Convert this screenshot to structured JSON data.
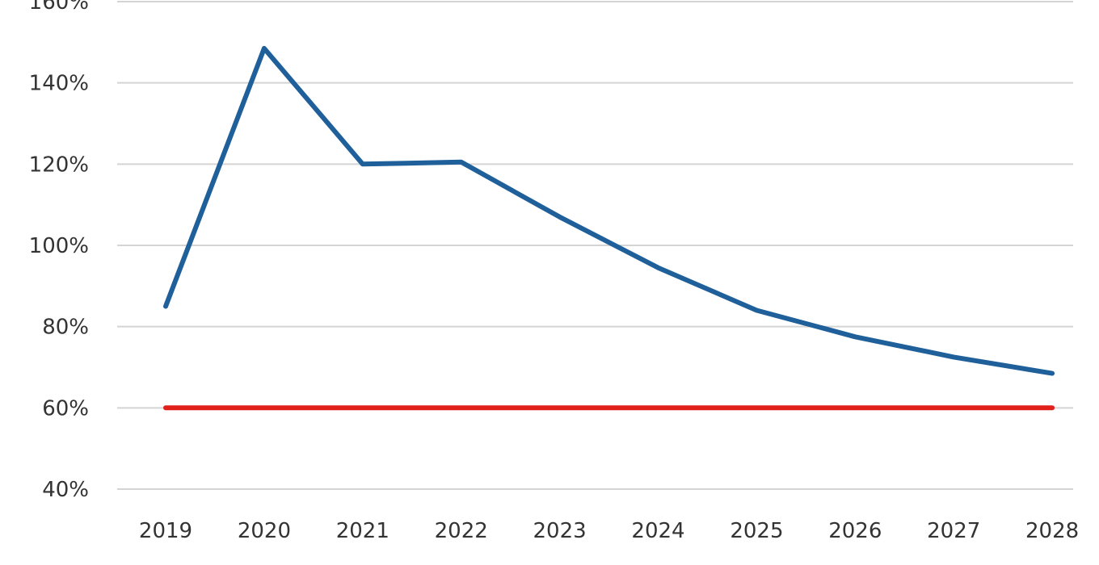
{
  "chart_data": {
    "type": "line",
    "title": "",
    "xlabel": "",
    "ylabel": "",
    "categories": [
      "2019",
      "2020",
      "2021",
      "2022",
      "2023",
      "2024",
      "2025",
      "2026",
      "2027",
      "2028"
    ],
    "y_tick_values": [
      40,
      60,
      80,
      100,
      120,
      140,
      160
    ],
    "y_tick_labels": [
      "40%",
      "60%",
      "80%",
      "100%",
      "120%",
      "140%",
      "160%"
    ],
    "ylim": [
      40,
      160
    ],
    "y_unit": "%",
    "grid": "horizontal",
    "legend": "none",
    "series": [
      {
        "values": [
          85,
          148.5,
          120,
          120.5,
          107,
          94.5,
          84,
          77.5,
          72.5,
          68.5
        ],
        "color": "#1f5f9a"
      },
      {
        "values": [
          60,
          60,
          60,
          60,
          60,
          60,
          60,
          60,
          60,
          60
        ],
        "color": "#e0201b"
      }
    ]
  }
}
